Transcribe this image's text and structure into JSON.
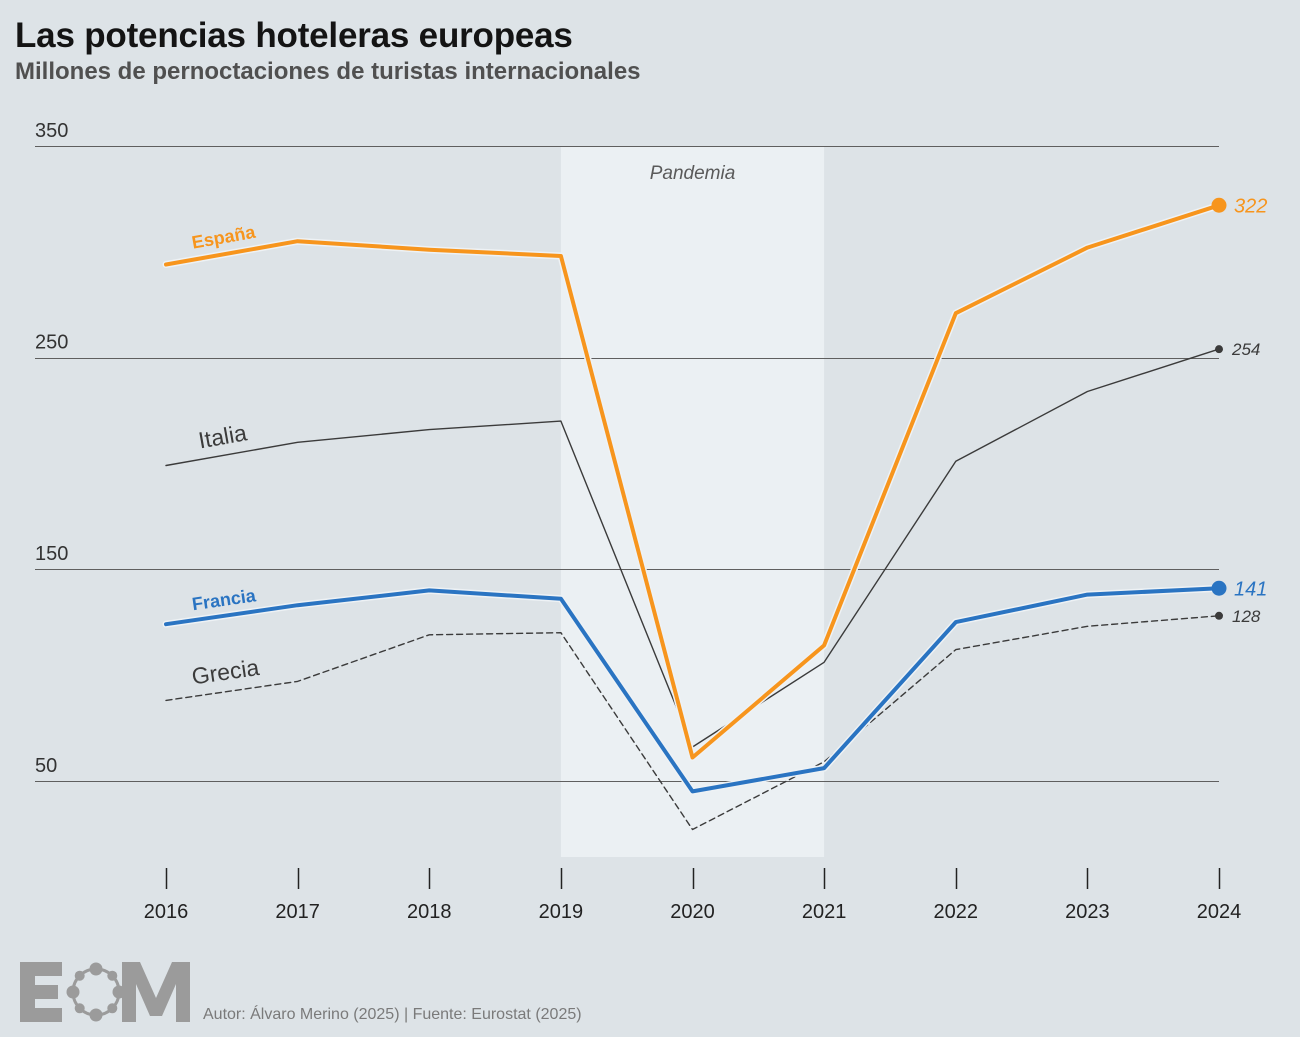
{
  "chart_data": {
    "type": "line",
    "title": "Las potencias hoteleras europeas",
    "subtitle": "Millones de pernoctaciones de turistas internacionales",
    "x": [
      "2016",
      "2017",
      "2018",
      "2019",
      "2020",
      "2021",
      "2022",
      "2023",
      "2024"
    ],
    "y_ticks": [
      350,
      250,
      150,
      50
    ],
    "ylim": [
      14,
      350
    ],
    "grid": true,
    "annotations": [
      {
        "label": "Pandemia",
        "from": "2019",
        "to": "2021"
      }
    ],
    "series": [
      {
        "name": "España",
        "values": [
          294,
          305,
          301,
          298,
          61,
          114,
          271,
          302,
          322
        ],
        "color": "#f7951d",
        "highlight": true,
        "dashed": false
      },
      {
        "name": "Italia",
        "values": [
          199,
          210,
          216,
          220,
          66,
          106,
          201,
          234,
          254
        ],
        "color": "#3b3b3b",
        "highlight": false,
        "dashed": false
      },
      {
        "name": "Francia",
        "values": [
          124,
          133,
          140,
          136,
          45,
          56,
          125,
          138,
          141
        ],
        "color": "#2a74c2",
        "highlight": true,
        "dashed": false
      },
      {
        "name": "Grecia",
        "values": [
          88,
          97,
          119,
          120,
          27,
          59,
          112,
          123,
          128
        ],
        "color": "#3b3b3b",
        "highlight": false,
        "dashed": true
      }
    ],
    "end_labels": true
  },
  "footer": {
    "logo_text": "EOM",
    "credit": "Autor: Álvaro Merino (2025) | Fuente: Eurostat (2025)"
  },
  "colors": {
    "background": "#dde3e7",
    "highlight_band": "#ebf0f3",
    "logo": "#9b9b9b"
  }
}
